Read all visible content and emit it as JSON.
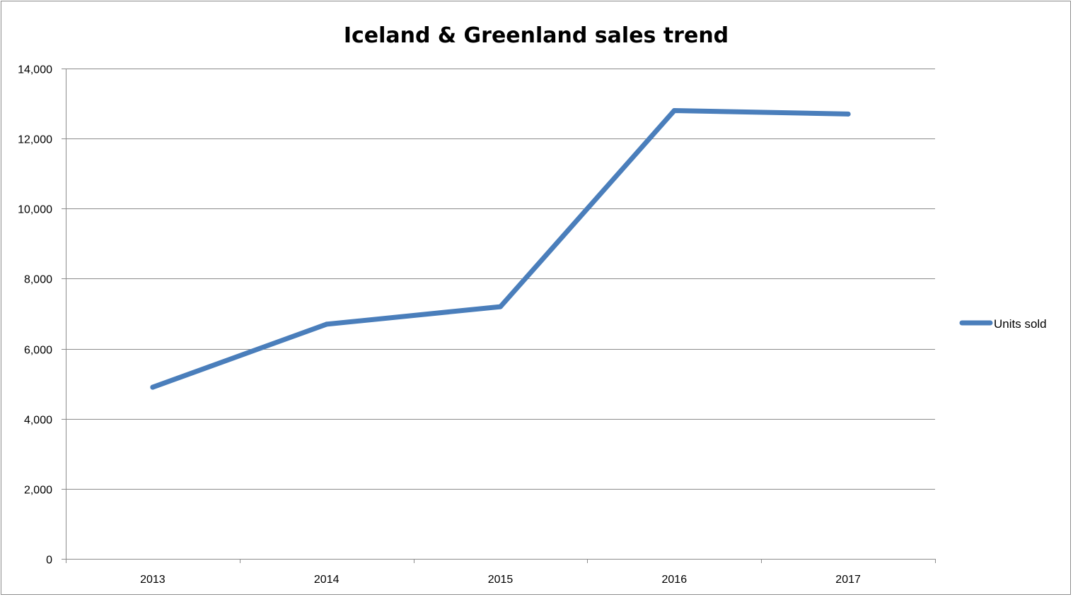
{
  "chart_data": {
    "type": "line",
    "title": "Iceland & Greenland sales trend",
    "xlabel": "",
    "ylabel": "",
    "categories": [
      "2013",
      "2014",
      "2015",
      "2016",
      "2017"
    ],
    "series": [
      {
        "name": "Units sold",
        "values": [
          4900,
          6700,
          7200,
          12800,
          12700
        ],
        "color": "#4a7ebb"
      }
    ],
    "ylim": [
      0,
      14000
    ],
    "yticks": [
      0,
      2000,
      4000,
      6000,
      8000,
      10000,
      12000,
      14000
    ],
    "ytick_labels": [
      "0",
      "2,000",
      "4,000",
      "6,000",
      "8,000",
      "10,000",
      "12,000",
      "14,000"
    ],
    "grid": "horizontal",
    "legend_position": "right"
  }
}
